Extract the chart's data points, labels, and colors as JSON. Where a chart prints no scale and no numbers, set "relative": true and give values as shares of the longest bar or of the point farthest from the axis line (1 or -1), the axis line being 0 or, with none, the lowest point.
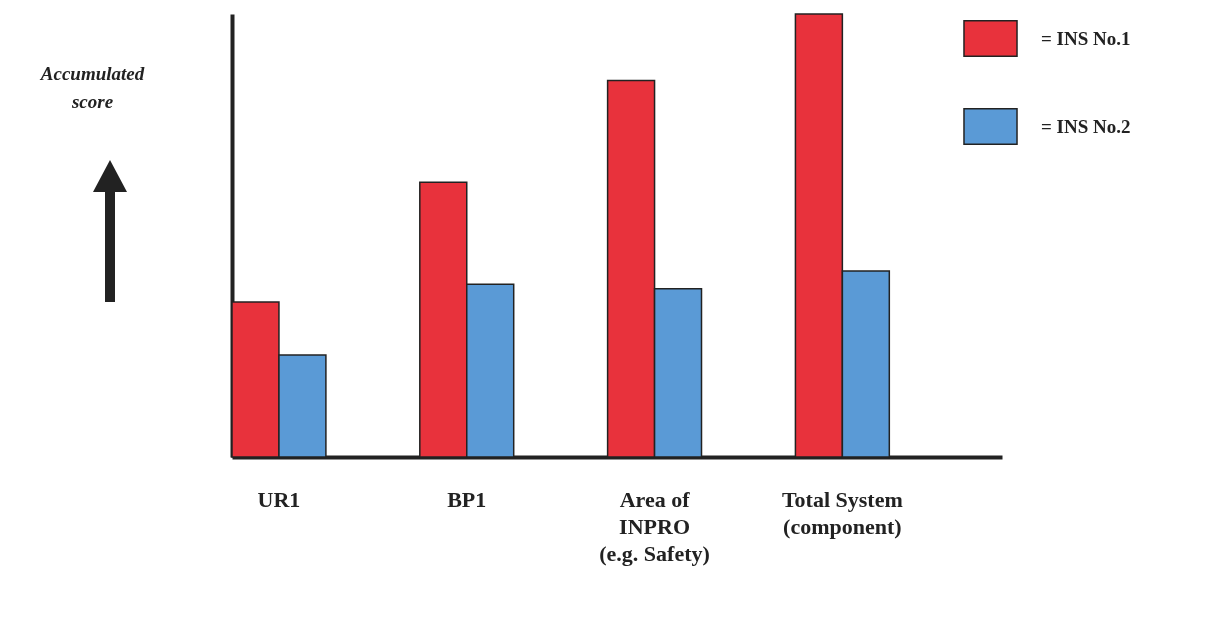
{
  "chart_data": {
    "type": "bar",
    "relative": true,
    "ylabel": "Accumulated score",
    "categories": [
      "UR1",
      "BP1",
      "Area of\nINPRO\n(e.g. Safety)",
      "Total System\n(component)"
    ],
    "series": [
      {
        "name": "= INS No.1",
        "color": "#e8323c",
        "values": [
          0.35,
          0.62,
          0.85,
          1
        ]
      },
      {
        "name": "= INS No.2",
        "color": "#5a9ad6",
        "values": [
          0.23,
          0.39,
          0.38,
          0.42
        ]
      }
    ],
    "legend": "top right"
  }
}
